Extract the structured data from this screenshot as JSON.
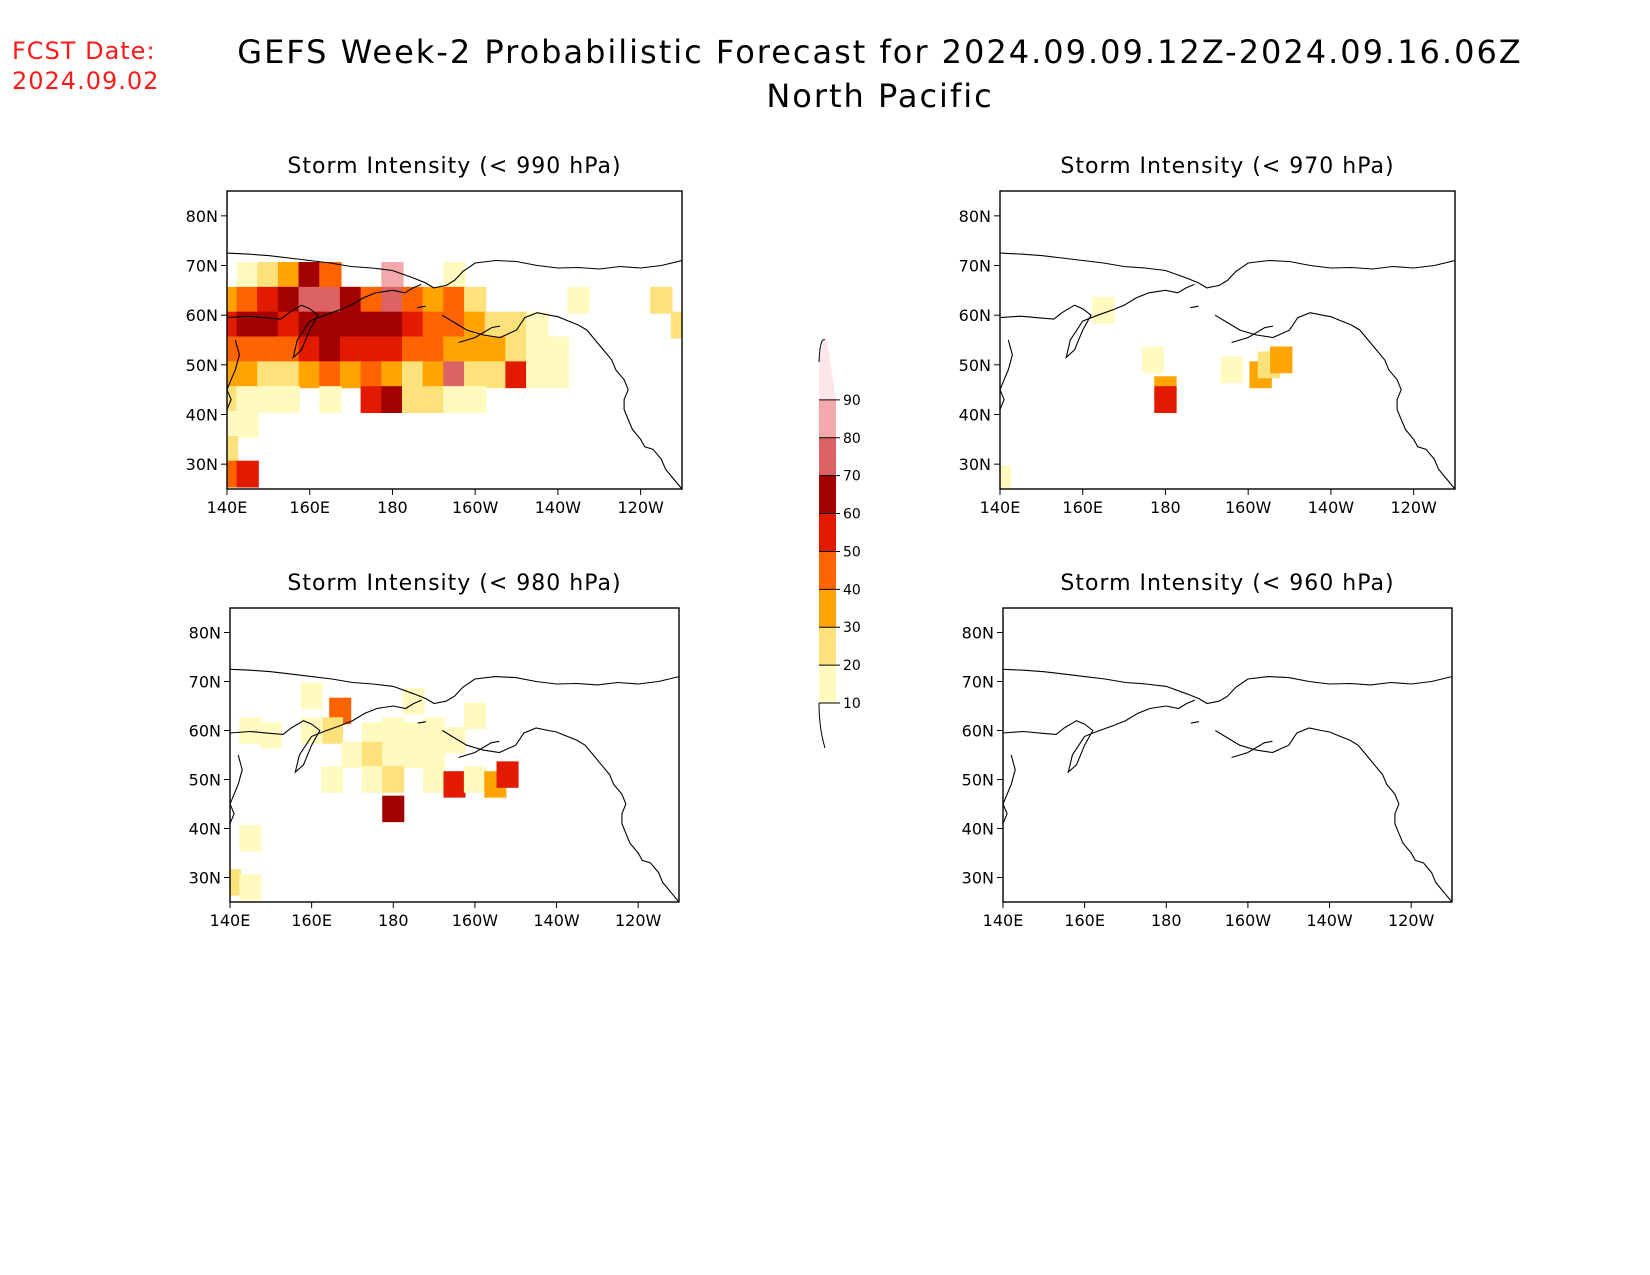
{
  "fcst_label": "FCST Date:",
  "fcst_date": "2024.09.02",
  "title": "GEFS Week-2 Probabilistic Forecast for 2024.09.09.12Z-2024.09.16.06Z",
  "region": "North Pacific",
  "colors": {
    "bins": [
      "#fffbc0",
      "#fde17a",
      "#ffa400",
      "#ff6400",
      "#e21a00",
      "#a30000",
      "#dd6264",
      "#f3a9ac",
      "#fce6ea"
    ]
  },
  "colorbar": {
    "labels": [
      "10",
      "20",
      "30",
      "40",
      "50",
      "60",
      "70",
      "80",
      "90"
    ]
  },
  "axes": {
    "lat_labels": [
      "80N",
      "70N",
      "60N",
      "50N",
      "40N",
      "30N"
    ],
    "lon_labels": [
      "140E",
      "160E",
      "180",
      "160W",
      "140W",
      "120W"
    ],
    "lat_range": [
      25,
      85
    ],
    "lon_range": [
      140,
      250
    ]
  },
  "panels": [
    {
      "title": "Storm Intensity (< 990 hPa)"
    },
    {
      "title": "Storm Intensity (< 970 hPa)"
    },
    {
      "title": "Storm Intensity (< 980 hPa)"
    },
    {
      "title": "Storm Intensity (< 960 hPa)"
    }
  ],
  "chart_data": [
    {
      "type": "heatmap",
      "title": "Storm Intensity (< 990 hPa)",
      "x_units": "longitude (deg E)",
      "y_units": "latitude",
      "units": "probability (%)",
      "cells": [
        {
          "lon": 145,
          "lat": 68,
          "p": 15
        },
        {
          "lon": 150,
          "lat": 68,
          "p": 20
        },
        {
          "lon": 155,
          "lat": 68,
          "p": 35
        },
        {
          "lon": 160,
          "lat": 68,
          "p": 65
        },
        {
          "lon": 165,
          "lat": 68,
          "p": 40
        },
        {
          "lon": 180,
          "lat": 68,
          "p": 80
        },
        {
          "lon": 195,
          "lat": 68,
          "p": 15
        },
        {
          "lon": 140,
          "lat": 63,
          "p": 35
        },
        {
          "lon": 145,
          "lat": 63,
          "p": 45
        },
        {
          "lon": 150,
          "lat": 63,
          "p": 55
        },
        {
          "lon": 155,
          "lat": 63,
          "p": 65
        },
        {
          "lon": 160,
          "lat": 63,
          "p": 70
        },
        {
          "lon": 165,
          "lat": 63,
          "p": 75
        },
        {
          "lon": 170,
          "lat": 63,
          "p": 60
        },
        {
          "lon": 175,
          "lat": 63,
          "p": 45
        },
        {
          "lon": 180,
          "lat": 63,
          "p": 75
        },
        {
          "lon": 185,
          "lat": 63,
          "p": 45
        },
        {
          "lon": 190,
          "lat": 63,
          "p": 35
        },
        {
          "lon": 195,
          "lat": 63,
          "p": 40
        },
        {
          "lon": 200,
          "lat": 63,
          "p": 25
        },
        {
          "lon": 140,
          "lat": 58,
          "p": 55
        },
        {
          "lon": 145,
          "lat": 58,
          "p": 65
        },
        {
          "lon": 150,
          "lat": 58,
          "p": 60
        },
        {
          "lon": 155,
          "lat": 58,
          "p": 55
        },
        {
          "lon": 160,
          "lat": 58,
          "p": 60
        },
        {
          "lon": 165,
          "lat": 58,
          "p": 65
        },
        {
          "lon": 170,
          "lat": 58,
          "p": 65
        },
        {
          "lon": 175,
          "lat": 58,
          "p": 68
        },
        {
          "lon": 180,
          "lat": 58,
          "p": 65
        },
        {
          "lon": 185,
          "lat": 58,
          "p": 55
        },
        {
          "lon": 190,
          "lat": 58,
          "p": 48
        },
        {
          "lon": 195,
          "lat": 58,
          "p": 45
        },
        {
          "lon": 200,
          "lat": 58,
          "p": 30
        },
        {
          "lon": 205,
          "lat": 58,
          "p": 25
        },
        {
          "lon": 210,
          "lat": 58,
          "p": 20
        },
        {
          "lon": 215,
          "lat": 58,
          "p": 15
        },
        {
          "lon": 140,
          "lat": 53,
          "p": 45
        },
        {
          "lon": 145,
          "lat": 53,
          "p": 40
        },
        {
          "lon": 150,
          "lat": 53,
          "p": 40
        },
        {
          "lon": 155,
          "lat": 53,
          "p": 45
        },
        {
          "lon": 160,
          "lat": 53,
          "p": 55
        },
        {
          "lon": 165,
          "lat": 53,
          "p": 60
        },
        {
          "lon": 170,
          "lat": 53,
          "p": 55
        },
        {
          "lon": 175,
          "lat": 53,
          "p": 50
        },
        {
          "lon": 180,
          "lat": 53,
          "p": 55
        },
        {
          "lon": 185,
          "lat": 53,
          "p": 45
        },
        {
          "lon": 190,
          "lat": 53,
          "p": 40
        },
        {
          "lon": 195,
          "lat": 53,
          "p": 35
        },
        {
          "lon": 200,
          "lat": 53,
          "p": 30
        },
        {
          "lon": 205,
          "lat": 53,
          "p": 30
        },
        {
          "lon": 210,
          "lat": 53,
          "p": 25
        },
        {
          "lon": 215,
          "lat": 53,
          "p": 15
        },
        {
          "lon": 220,
          "lat": 53,
          "p": 10
        },
        {
          "lon": 140,
          "lat": 48,
          "p": 35
        },
        {
          "lon": 145,
          "lat": 48,
          "p": 30
        },
        {
          "lon": 150,
          "lat": 48,
          "p": 25
        },
        {
          "lon": 155,
          "lat": 48,
          "p": 25
        },
        {
          "lon": 160,
          "lat": 48,
          "p": 35
        },
        {
          "lon": 165,
          "lat": 48,
          "p": 40
        },
        {
          "lon": 170,
          "lat": 48,
          "p": 35
        },
        {
          "lon": 175,
          "lat": 48,
          "p": 40
        },
        {
          "lon": 180,
          "lat": 48,
          "p": 30
        },
        {
          "lon": 185,
          "lat": 48,
          "p": 25
        },
        {
          "lon": 190,
          "lat": 48,
          "p": 35
        },
        {
          "lon": 195,
          "lat": 48,
          "p": 75
        },
        {
          "lon": 200,
          "lat": 48,
          "p": 25
        },
        {
          "lon": 205,
          "lat": 48,
          "p": 20
        },
        {
          "lon": 210,
          "lat": 48,
          "p": 55
        },
        {
          "lon": 215,
          "lat": 48,
          "p": 15
        },
        {
          "lon": 220,
          "lat": 48,
          "p": 10
        },
        {
          "lon": 140,
          "lat": 43,
          "p": 25
        },
        {
          "lon": 145,
          "lat": 43,
          "p": 15
        },
        {
          "lon": 150,
          "lat": 43,
          "p": 10
        },
        {
          "lon": 155,
          "lat": 43,
          "p": 10
        },
        {
          "lon": 165,
          "lat": 43,
          "p": 15
        },
        {
          "lon": 175,
          "lat": 43,
          "p": 55
        },
        {
          "lon": 180,
          "lat": 43,
          "p": 65
        },
        {
          "lon": 185,
          "lat": 43,
          "p": 25
        },
        {
          "lon": 190,
          "lat": 43,
          "p": 20
        },
        {
          "lon": 195,
          "lat": 43,
          "p": 15
        },
        {
          "lon": 200,
          "lat": 43,
          "p": 10
        },
        {
          "lon": 140,
          "lat": 38,
          "p": 15
        },
        {
          "lon": 145,
          "lat": 38,
          "p": 10
        },
        {
          "lon": 140,
          "lat": 33,
          "p": 25
        },
        {
          "lon": 140,
          "lat": 28,
          "p": 45
        },
        {
          "lon": 145,
          "lat": 28,
          "p": 55
        },
        {
          "lon": 225,
          "lat": 63,
          "p": 15
        },
        {
          "lon": 245,
          "lat": 63,
          "p": 20
        },
        {
          "lon": 250,
          "lat": 58,
          "p": 25
        }
      ]
    },
    {
      "type": "heatmap",
      "title": "Storm Intensity (< 970 hPa)",
      "x_units": "longitude (deg E)",
      "y_units": "latitude",
      "units": "probability (%)",
      "cells": [
        {
          "lon": 165,
          "lat": 61,
          "p": 15
        },
        {
          "lon": 177,
          "lat": 51,
          "p": 10
        },
        {
          "lon": 180,
          "lat": 45,
          "p": 30
        },
        {
          "lon": 180,
          "lat": 43,
          "p": 55
        },
        {
          "lon": 196,
          "lat": 49,
          "p": 15
        },
        {
          "lon": 203,
          "lat": 48,
          "p": 30
        },
        {
          "lon": 205,
          "lat": 50,
          "p": 20
        },
        {
          "lon": 208,
          "lat": 51,
          "p": 35
        },
        {
          "lon": 140,
          "lat": 27,
          "p": 15
        }
      ]
    },
    {
      "type": "heatmap",
      "title": "Storm Intensity (< 980 hPa)",
      "x_units": "longitude (deg E)",
      "y_units": "latitude",
      "units": "probability (%)",
      "cells": [
        {
          "lon": 160,
          "lat": 67,
          "p": 12
        },
        {
          "lon": 167,
          "lat": 64,
          "p": 45
        },
        {
          "lon": 165,
          "lat": 60,
          "p": 20
        },
        {
          "lon": 145,
          "lat": 60,
          "p": 10
        },
        {
          "lon": 150,
          "lat": 59,
          "p": 12
        },
        {
          "lon": 160,
          "lat": 60,
          "p": 15
        },
        {
          "lon": 175,
          "lat": 59,
          "p": 12
        },
        {
          "lon": 180,
          "lat": 60,
          "p": 10
        },
        {
          "lon": 185,
          "lat": 59,
          "p": 12
        },
        {
          "lon": 190,
          "lat": 60,
          "p": 10
        },
        {
          "lon": 195,
          "lat": 58,
          "p": 10
        },
        {
          "lon": 200,
          "lat": 63,
          "p": 12
        },
        {
          "lon": 185,
          "lat": 66,
          "p": 10
        },
        {
          "lon": 170,
          "lat": 55,
          "p": 10
        },
        {
          "lon": 175,
          "lat": 55,
          "p": 25
        },
        {
          "lon": 180,
          "lat": 55,
          "p": 12
        },
        {
          "lon": 185,
          "lat": 55,
          "p": 10
        },
        {
          "lon": 190,
          "lat": 55,
          "p": 12
        },
        {
          "lon": 165,
          "lat": 50,
          "p": 10
        },
        {
          "lon": 175,
          "lat": 50,
          "p": 12
        },
        {
          "lon": 180,
          "lat": 50,
          "p": 20
        },
        {
          "lon": 190,
          "lat": 50,
          "p": 10
        },
        {
          "lon": 195,
          "lat": 49,
          "p": 55
        },
        {
          "lon": 200,
          "lat": 50,
          "p": 10
        },
        {
          "lon": 205,
          "lat": 49,
          "p": 30
        },
        {
          "lon": 208,
          "lat": 51,
          "p": 55
        },
        {
          "lon": 180,
          "lat": 44,
          "p": 65
        },
        {
          "lon": 140,
          "lat": 29,
          "p": 20
        },
        {
          "lon": 145,
          "lat": 28,
          "p": 15
        },
        {
          "lon": 145,
          "lat": 38,
          "p": 10
        }
      ]
    },
    {
      "type": "heatmap",
      "title": "Storm Intensity (< 960 hPa)",
      "x_units": "longitude (deg E)",
      "y_units": "latitude",
      "units": "probability (%)",
      "cells": []
    }
  ]
}
